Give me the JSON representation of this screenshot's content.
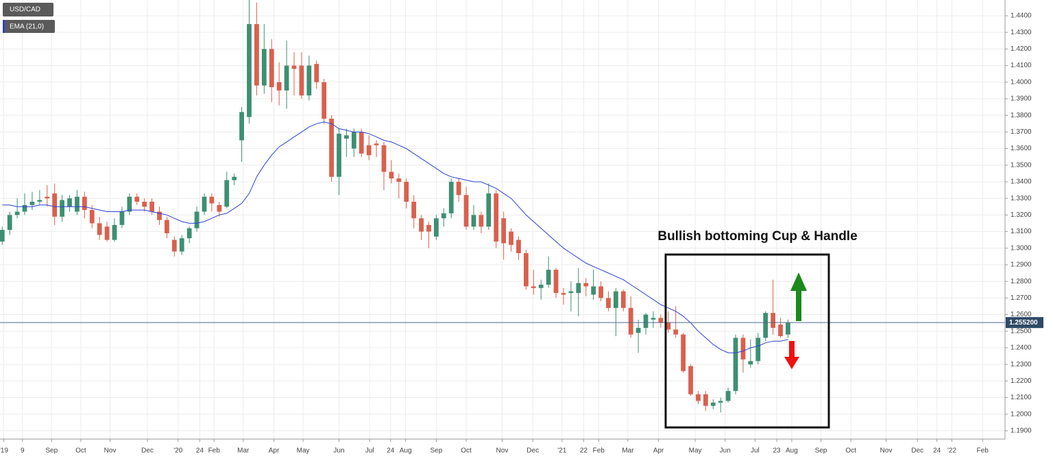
{
  "chart_data": {
    "type": "candlestick",
    "series": [
      {
        "name": "USD/CAD",
        "up_color": "#3d8f73",
        "down_color": "#d9604e",
        "open": [
          1.304,
          1.311,
          1.32,
          1.322,
          1.326,
          1.328,
          1.331,
          1.333,
          1.319,
          1.325,
          1.322,
          1.331,
          1.323,
          1.315,
          1.313,
          1.305,
          1.314,
          1.322,
          1.331,
          1.328,
          1.328,
          1.322,
          1.317,
          1.305,
          1.298,
          1.306,
          1.312,
          1.322,
          1.331,
          1.326,
          1.325,
          1.341,
          1.365,
          1.379,
          1.435,
          1.398,
          1.42,
          1.4,
          1.395,
          1.41,
          1.41,
          1.392,
          1.411,
          1.4,
          1.378,
          1.343,
          1.366,
          1.36,
          1.37,
          1.362,
          1.363,
          1.362,
          1.346,
          1.342,
          1.34,
          1.328,
          1.318,
          1.314,
          1.307,
          1.318,
          1.321,
          1.34,
          1.332,
          1.313,
          1.32,
          1.313,
          1.333,
          1.318,
          1.31,
          1.305,
          1.297,
          1.277,
          1.276,
          1.278,
          1.287,
          1.273,
          1.273,
          1.273,
          1.279,
          1.272,
          1.277,
          1.27,
          1.264,
          1.274,
          1.264,
          1.249,
          1.252,
          1.257,
          1.258,
          1.255,
          1.251,
          1.248,
          1.229,
          1.212,
          1.212,
          1.205,
          1.207,
          1.208,
          1.214,
          1.246,
          1.23,
          1.232,
          1.246,
          1.261,
          1.254,
          1.248
        ],
        "high": [
          1.313,
          1.322,
          1.33,
          1.333,
          1.334,
          1.335,
          1.338,
          1.339,
          1.332,
          1.332,
          1.335,
          1.334,
          1.326,
          1.319,
          1.316,
          1.318,
          1.325,
          1.333,
          1.333,
          1.33,
          1.33,
          1.325,
          1.319,
          1.307,
          1.308,
          1.313,
          1.325,
          1.333,
          1.333,
          1.328,
          1.346,
          1.345,
          1.385,
          1.45,
          1.448,
          1.435,
          1.426,
          1.412,
          1.425,
          1.418,
          1.418,
          1.416,
          1.413,
          1.402,
          1.38,
          1.372,
          1.372,
          1.372,
          1.372,
          1.368,
          1.365,
          1.364,
          1.353,
          1.345,
          1.342,
          1.332,
          1.32,
          1.316,
          1.32,
          1.324,
          1.342,
          1.342,
          1.337,
          1.326,
          1.322,
          1.339,
          1.335,
          1.322,
          1.312,
          1.307,
          1.299,
          1.287,
          1.281,
          1.295,
          1.288,
          1.276,
          1.28,
          1.288,
          1.282,
          1.287,
          1.28,
          1.274,
          1.276,
          1.275,
          1.271,
          1.257,
          1.261,
          1.262,
          1.26,
          1.262,
          1.265,
          1.249,
          1.23,
          1.214,
          1.214,
          1.209,
          1.21,
          1.216,
          1.248,
          1.248,
          1.245,
          1.249,
          1.262,
          1.281,
          1.258,
          1.257
        ],
        "low": [
          1.302,
          1.308,
          1.318,
          1.32,
          1.323,
          1.326,
          1.325,
          1.314,
          1.316,
          1.322,
          1.32,
          1.318,
          1.312,
          1.305,
          1.304,
          1.304,
          1.312,
          1.32,
          1.326,
          1.322,
          1.32,
          1.314,
          1.306,
          1.295,
          1.296,
          1.303,
          1.31,
          1.32,
          1.322,
          1.319,
          1.324,
          1.338,
          1.352,
          1.375,
          1.392,
          1.393,
          1.388,
          1.386,
          1.384,
          1.392,
          1.39,
          1.389,
          1.396,
          1.375,
          1.34,
          1.332,
          1.355,
          1.355,
          1.355,
          1.353,
          1.355,
          1.335,
          1.339,
          1.33,
          1.324,
          1.312,
          1.305,
          1.3,
          1.305,
          1.313,
          1.318,
          1.328,
          1.311,
          1.311,
          1.309,
          1.311,
          1.3,
          1.293,
          1.298,
          1.293,
          1.275,
          1.272,
          1.269,
          1.276,
          1.27,
          1.266,
          1.262,
          1.259,
          1.271,
          1.269,
          1.268,
          1.262,
          1.247,
          1.262,
          1.246,
          1.237,
          1.248,
          1.252,
          1.252,
          1.249,
          1.246,
          1.225,
          1.211,
          1.206,
          1.202,
          1.203,
          1.201,
          1.207,
          1.212,
          1.225,
          1.228,
          1.23,
          1.244,
          1.248,
          1.246,
          1.246
        ],
        "close": [
          1.311,
          1.32,
          1.322,
          1.326,
          1.328,
          1.329,
          1.33,
          1.319,
          1.329,
          1.33,
          1.331,
          1.323,
          1.315,
          1.308,
          1.305,
          1.314,
          1.322,
          1.331,
          1.328,
          1.325,
          1.322,
          1.317,
          1.309,
          1.298,
          1.306,
          1.312,
          1.322,
          1.331,
          1.327,
          1.322,
          1.341,
          1.343,
          1.382,
          1.435,
          1.398,
          1.42,
          1.397,
          1.395,
          1.41,
          1.408,
          1.392,
          1.41,
          1.4,
          1.378,
          1.343,
          1.369,
          1.368,
          1.37,
          1.357,
          1.356,
          1.362,
          1.346,
          1.342,
          1.34,
          1.328,
          1.318,
          1.31,
          1.31,
          1.318,
          1.321,
          1.34,
          1.332,
          1.313,
          1.32,
          1.313,
          1.333,
          1.304,
          1.303,
          1.302,
          1.297,
          1.277,
          1.276,
          1.278,
          1.287,
          1.273,
          1.272,
          1.274,
          1.279,
          1.277,
          1.277,
          1.27,
          1.264,
          1.274,
          1.264,
          1.248,
          1.252,
          1.26,
          1.258,
          1.255,
          1.251,
          1.248,
          1.226,
          1.212,
          1.208,
          1.205,
          1.207,
          1.208,
          1.214,
          1.246,
          1.233,
          1.232,
          1.246,
          1.261,
          1.252,
          1.247,
          1.255
        ]
      }
    ],
    "ema": {
      "name": "EMA (21,0)",
      "color": "#2a3fd6",
      "values": [
        1.326,
        1.326,
        1.325,
        1.325,
        1.325,
        1.326,
        1.326,
        1.325,
        1.325,
        1.325,
        1.325,
        1.325,
        1.324,
        1.323,
        1.322,
        1.322,
        1.322,
        1.323,
        1.323,
        1.323,
        1.322,
        1.321,
        1.32,
        1.318,
        1.316,
        1.315,
        1.315,
        1.316,
        1.318,
        1.32,
        1.321,
        1.324,
        1.327,
        1.333,
        1.343,
        1.35,
        1.356,
        1.361,
        1.364,
        1.367,
        1.37,
        1.373,
        1.375,
        1.376,
        1.375,
        1.372,
        1.371,
        1.37,
        1.37,
        1.369,
        1.367,
        1.365,
        1.364,
        1.362,
        1.36,
        1.357,
        1.354,
        1.351,
        1.348,
        1.345,
        1.343,
        1.342,
        1.341,
        1.34,
        1.34,
        1.338,
        1.336,
        1.333,
        1.33,
        1.325,
        1.32,
        1.316,
        1.312,
        1.308,
        1.304,
        1.3,
        1.297,
        1.294,
        1.291,
        1.289,
        1.287,
        1.285,
        1.283,
        1.281,
        1.278,
        1.275,
        1.272,
        1.269,
        1.266,
        1.264,
        1.262,
        1.259,
        1.255,
        1.25,
        1.246,
        1.242,
        1.239,
        1.237,
        1.237,
        1.238,
        1.24,
        1.241,
        1.243,
        1.244,
        1.244,
        1.245
      ]
    },
    "last_price": {
      "value": 1.2552,
      "label": "1.255200"
    },
    "annotation": "Bullish bottoming Cup & Handle",
    "grid": true,
    "xlim": [
      -0.3,
      134
    ],
    "ylim": [
      1.185,
      1.4495
    ],
    "xticks": [
      {
        "value": 0.2,
        "label": "'19"
      },
      {
        "value": 2.7,
        "label": "9"
      },
      {
        "value": 6.6,
        "label": "Sep"
      },
      {
        "value": 10.5,
        "label": "Oct"
      },
      {
        "value": 14.4,
        "label": "Nov"
      },
      {
        "value": 19.4,
        "label": "Dec"
      },
      {
        "value": 23.5,
        "label": "'20"
      },
      {
        "value": 26.4,
        "label": "24"
      },
      {
        "value": 28.3,
        "label": "Feb"
      },
      {
        "value": 32.2,
        "label": "Mar"
      },
      {
        "value": 36.3,
        "label": "Apr"
      },
      {
        "value": 40.2,
        "label": "May"
      },
      {
        "value": 45.0,
        "label": "Jun"
      },
      {
        "value": 49.1,
        "label": "Jul"
      },
      {
        "value": 51.9,
        "label": "24"
      },
      {
        "value": 53.9,
        "label": "Aug"
      },
      {
        "value": 58.0,
        "label": "Sep"
      },
      {
        "value": 62.0,
        "label": "Oct"
      },
      {
        "value": 66.8,
        "label": "Nov"
      },
      {
        "value": 70.9,
        "label": "Dec"
      },
      {
        "value": 74.8,
        "label": "'21"
      },
      {
        "value": 77.7,
        "label": "22"
      },
      {
        "value": 79.7,
        "label": "Feb"
      },
      {
        "value": 83.6,
        "label": "Mar"
      },
      {
        "value": 87.7,
        "label": "Apr"
      },
      {
        "value": 92.6,
        "label": "May"
      },
      {
        "value": 96.6,
        "label": "Jun"
      },
      {
        "value": 100.6,
        "label": "Jul"
      },
      {
        "value": 103.5,
        "label": "23"
      },
      {
        "value": 105.5,
        "label": "Aug"
      },
      {
        "value": 109.4,
        "label": "Sep"
      },
      {
        "value": 113.4,
        "label": "Oct"
      },
      {
        "value": 118.1,
        "label": "Nov"
      },
      {
        "value": 122.3,
        "label": "Dec"
      },
      {
        "value": 124.9,
        "label": "24"
      },
      {
        "value": 126.9,
        "label": "'22"
      },
      {
        "value": 131.0,
        "label": "Feb"
      }
    ],
    "yticks": [
      {
        "value": 1.19,
        "label": "1.1900"
      },
      {
        "value": 1.2,
        "label": "1.2000"
      },
      {
        "value": 1.21,
        "label": "1.2100"
      },
      {
        "value": 1.22,
        "label": "1.2200"
      },
      {
        "value": 1.23,
        "label": "1.2300"
      },
      {
        "value": 1.24,
        "label": "1.2400"
      },
      {
        "value": 1.25,
        "label": "1.2500"
      },
      {
        "value": 1.26,
        "label": "1.2600"
      },
      {
        "value": 1.27,
        "label": "1.2700"
      },
      {
        "value": 1.28,
        "label": "1.2800"
      },
      {
        "value": 1.29,
        "label": "1.2900"
      },
      {
        "value": 1.3,
        "label": "1.3000"
      },
      {
        "value": 1.31,
        "label": "1.3100"
      },
      {
        "value": 1.32,
        "label": "1.3200"
      },
      {
        "value": 1.33,
        "label": "1.3300"
      },
      {
        "value": 1.34,
        "label": "1.3400"
      },
      {
        "value": 1.35,
        "label": "1.3500"
      },
      {
        "value": 1.36,
        "label": "1.3600"
      },
      {
        "value": 1.37,
        "label": "1.3700"
      },
      {
        "value": 1.38,
        "label": "1.3800"
      },
      {
        "value": 1.39,
        "label": "1.3900"
      },
      {
        "value": 1.4,
        "label": "1.4000"
      },
      {
        "value": 1.41,
        "label": "1.4100"
      },
      {
        "value": 1.42,
        "label": "1.4200"
      },
      {
        "value": 1.43,
        "label": "1.4300"
      },
      {
        "value": 1.44,
        "label": "1.4400"
      }
    ]
  }
}
